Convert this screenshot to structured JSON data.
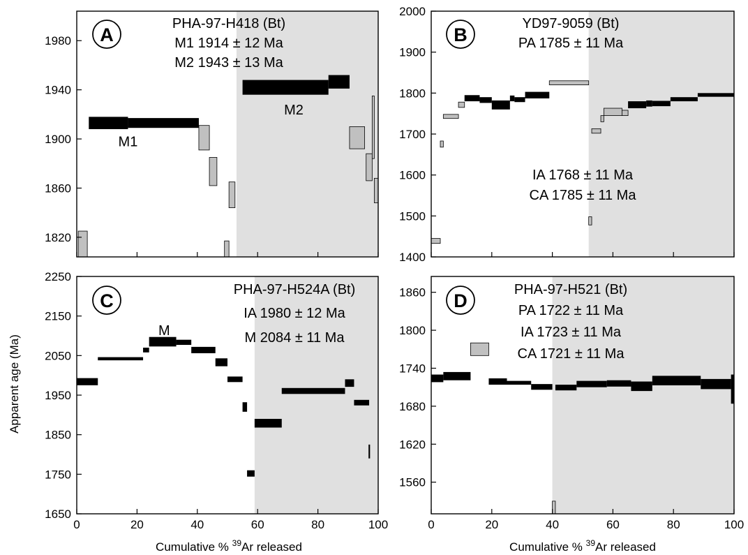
{
  "figure": {
    "ylabel": "Apparent age (Ma)",
    "xlabel_left": {
      "prefix": "Cumulative % ",
      "sup": "39",
      "suffix": "Ar released"
    },
    "xlabel_right": {
      "prefix": "Cumulative % ",
      "sup": "39",
      "suffix": "Ar released"
    }
  },
  "colors": {
    "shade": "#e0e0e0",
    "dark": "#000000",
    "gray": "#c0c0c0"
  },
  "chart_data": [
    {
      "id": "A",
      "type": "step-spectrum",
      "label": "A",
      "xlim": [
        0,
        100
      ],
      "ylim": [
        1804,
        2004
      ],
      "yticks": [
        1820,
        1860,
        1900,
        1940,
        1980
      ],
      "xticks": [],
      "shaded_from": 53,
      "annotations": [
        "PHA-97-H418 (Bt)",
        "M1 1914 ± 12 Ma",
        "M2 1943 ± 13 Ma"
      ],
      "plateau_labels": [
        {
          "text": "M1",
          "x": 17,
          "y": 1898
        },
        {
          "text": "M2",
          "x": 72,
          "y": 1924
        }
      ],
      "steps": [
        {
          "x0": 0.5,
          "x1": 3.5,
          "ymin": 1804,
          "ymax": 1825,
          "fill": "gray"
        },
        {
          "x0": 4,
          "x1": 17,
          "ymin": 1908,
          "ymax": 1918,
          "fill": "dark"
        },
        {
          "x0": 17,
          "x1": 40.5,
          "ymin": 1909,
          "ymax": 1917,
          "fill": "dark"
        },
        {
          "x0": 40.5,
          "x1": 44,
          "ymin": 1891,
          "ymax": 1911,
          "fill": "gray"
        },
        {
          "x0": 44,
          "x1": 46.5,
          "ymin": 1862,
          "ymax": 1885,
          "fill": "gray"
        },
        {
          "x0": 49,
          "x1": 50.5,
          "ymin": 1804,
          "ymax": 1817,
          "fill": "gray"
        },
        {
          "x0": 50.5,
          "x1": 52.5,
          "ymin": 1844,
          "ymax": 1865,
          "fill": "gray"
        },
        {
          "x0": 55,
          "x1": 83.5,
          "ymin": 1936,
          "ymax": 1948,
          "fill": "dark"
        },
        {
          "x0": 83.5,
          "x1": 90.5,
          "ymin": 1941,
          "ymax": 1952,
          "fill": "dark"
        },
        {
          "x0": 90.5,
          "x1": 95.5,
          "ymin": 1892,
          "ymax": 1910,
          "fill": "gray"
        },
        {
          "x0": 96,
          "x1": 98,
          "ymin": 1866,
          "ymax": 1888,
          "fill": "gray"
        },
        {
          "x0": 98,
          "x1": 98.7,
          "ymin": 1884,
          "ymax": 1935,
          "fill": "gray"
        },
        {
          "x0": 98.7,
          "x1": 100,
          "ymin": 1848,
          "ymax": 1868,
          "fill": "gray"
        }
      ]
    },
    {
      "id": "B",
      "type": "step-spectrum",
      "label": "B",
      "xlim": [
        0,
        100
      ],
      "ylim": [
        1400,
        2000
      ],
      "yticks": [
        1400,
        1500,
        1600,
        1700,
        1800,
        1900,
        2000
      ],
      "xticks": [],
      "shaded_from": 52,
      "annotations": [
        "YD97-9059 (Bt)",
        "PA 1785 ± 11 Ma",
        "IA 1768 ± 11 Ma",
        "CA 1785 ± 11 Ma"
      ],
      "plateau_labels": [],
      "steps": [
        {
          "x0": 0,
          "x1": 3,
          "ymin": 1433,
          "ymax": 1445,
          "fill": "gray"
        },
        {
          "x0": 3,
          "x1": 4,
          "ymin": 1668,
          "ymax": 1683,
          "fill": "gray"
        },
        {
          "x0": 4,
          "x1": 9,
          "ymin": 1738,
          "ymax": 1748,
          "fill": "gray"
        },
        {
          "x0": 9,
          "x1": 11,
          "ymin": 1765,
          "ymax": 1778,
          "fill": "gray"
        },
        {
          "x0": 11,
          "x1": 16,
          "ymin": 1780,
          "ymax": 1795,
          "fill": "dark"
        },
        {
          "x0": 16,
          "x1": 20,
          "ymin": 1776,
          "ymax": 1790,
          "fill": "dark"
        },
        {
          "x0": 20,
          "x1": 26,
          "ymin": 1760,
          "ymax": 1782,
          "fill": "dark"
        },
        {
          "x0": 26,
          "x1": 27.5,
          "ymin": 1780,
          "ymax": 1794,
          "fill": "dark"
        },
        {
          "x0": 27.5,
          "x1": 31,
          "ymin": 1778,
          "ymax": 1790,
          "fill": "dark"
        },
        {
          "x0": 31,
          "x1": 39,
          "ymin": 1787,
          "ymax": 1803,
          "fill": "dark"
        },
        {
          "x0": 39,
          "x1": 52,
          "ymin": 1820,
          "ymax": 1830,
          "fill": "gray"
        },
        {
          "x0": 52,
          "x1": 53,
          "ymin": 1478,
          "ymax": 1498,
          "fill": "gray"
        },
        {
          "x0": 53,
          "x1": 56,
          "ymin": 1702,
          "ymax": 1713,
          "fill": "gray"
        },
        {
          "x0": 56,
          "x1": 57,
          "ymin": 1730,
          "ymax": 1745,
          "fill": "gray"
        },
        {
          "x0": 57,
          "x1": 63,
          "ymin": 1745,
          "ymax": 1763,
          "fill": "gray"
        },
        {
          "x0": 63,
          "x1": 65,
          "ymin": 1745,
          "ymax": 1758,
          "fill": "gray"
        },
        {
          "x0": 65,
          "x1": 71,
          "ymin": 1763,
          "ymax": 1780,
          "fill": "dark"
        },
        {
          "x0": 71,
          "x1": 73,
          "ymin": 1767,
          "ymax": 1782,
          "fill": "dark"
        },
        {
          "x0": 73,
          "x1": 79,
          "ymin": 1768,
          "ymax": 1781,
          "fill": "dark"
        },
        {
          "x0": 79,
          "x1": 88,
          "ymin": 1780,
          "ymax": 1790,
          "fill": "dark"
        },
        {
          "x0": 88,
          "x1": 100,
          "ymin": 1791,
          "ymax": 1800,
          "fill": "dark"
        }
      ]
    },
    {
      "id": "C",
      "type": "step-spectrum",
      "label": "C",
      "xlim": [
        0,
        100
      ],
      "ylim": [
        1650,
        2250
      ],
      "yticks": [
        1650,
        1750,
        1850,
        1950,
        2050,
        2150,
        2250
      ],
      "xticks": [
        0,
        20,
        40,
        60,
        80,
        100
      ],
      "shaded_from": 59,
      "annotations": [
        "PHA-97-H524A (Bt)",
        "IA 1980 ± 12 Ma",
        "M 2084 ± 11 Ma"
      ],
      "plateau_labels": [
        {
          "text": "M",
          "x": 29,
          "y": 2114
        }
      ],
      "steps": [
        {
          "x0": 0,
          "x1": 7,
          "ymin": 1975,
          "ymax": 1993,
          "fill": "dark"
        },
        {
          "x0": 7,
          "x1": 22,
          "ymin": 2038,
          "ymax": 2046,
          "fill": "dark"
        },
        {
          "x0": 22,
          "x1": 24,
          "ymin": 2058,
          "ymax": 2070,
          "fill": "dark"
        },
        {
          "x0": 24,
          "x1": 33,
          "ymin": 2073,
          "ymax": 2097,
          "fill": "dark"
        },
        {
          "x0": 33,
          "x1": 38,
          "ymin": 2077,
          "ymax": 2090,
          "fill": "dark"
        },
        {
          "x0": 38,
          "x1": 46,
          "ymin": 2056,
          "ymax": 2072,
          "fill": "dark"
        },
        {
          "x0": 46,
          "x1": 50,
          "ymin": 2023,
          "ymax": 2043,
          "fill": "dark"
        },
        {
          "x0": 50,
          "x1": 55,
          "ymin": 1983,
          "ymax": 1997,
          "fill": "dark"
        },
        {
          "x0": 55,
          "x1": 56.5,
          "ymin": 1908,
          "ymax": 1932,
          "fill": "dark"
        },
        {
          "x0": 56.5,
          "x1": 59,
          "ymin": 1744,
          "ymax": 1760,
          "fill": "dark"
        },
        {
          "x0": 59,
          "x1": 68,
          "ymin": 1868,
          "ymax": 1890,
          "fill": "dark"
        },
        {
          "x0": 68,
          "x1": 89,
          "ymin": 1953,
          "ymax": 1968,
          "fill": "dark"
        },
        {
          "x0": 89,
          "x1": 92,
          "ymin": 1971,
          "ymax": 1990,
          "fill": "dark"
        },
        {
          "x0": 92,
          "x1": 97,
          "ymin": 1924,
          "ymax": 1938,
          "fill": "dark"
        },
        {
          "x0": 96.8,
          "x1": 97.3,
          "ymin": 1790,
          "ymax": 1825,
          "fill": "dark"
        }
      ]
    },
    {
      "id": "D",
      "type": "step-spectrum",
      "label": "D",
      "xlim": [
        0,
        100
      ],
      "ylim": [
        1510,
        1885
      ],
      "yticks": [
        1560,
        1620,
        1680,
        1740,
        1800,
        1860
      ],
      "xticks": [
        0,
        20,
        40,
        60,
        80,
        100
      ],
      "shaded_from": 40,
      "annotations": [
        "PHA-97-H521 (Bt)",
        "PA 1722 ± 11 Ma",
        "IA 1723 ± 11 Ma",
        "CA 1721 ± 11 Ma"
      ],
      "plateau_labels": [],
      "steps": [
        {
          "x0": 0,
          "x1": 4,
          "ymin": 1718,
          "ymax": 1730,
          "fill": "dark"
        },
        {
          "x0": 4,
          "x1": 13,
          "ymin": 1721,
          "ymax": 1734,
          "fill": "dark"
        },
        {
          "x0": 13,
          "x1": 19,
          "ymin": 1760,
          "ymax": 1780,
          "fill": "gray"
        },
        {
          "x0": 19,
          "x1": 25,
          "ymin": 1714,
          "ymax": 1724,
          "fill": "dark"
        },
        {
          "x0": 25,
          "x1": 33,
          "ymin": 1714,
          "ymax": 1720,
          "fill": "dark"
        },
        {
          "x0": 33,
          "x1": 40,
          "ymin": 1706,
          "ymax": 1715,
          "fill": "dark"
        },
        {
          "x0": 40,
          "x1": 41,
          "ymin": 1510,
          "ymax": 1530,
          "fill": "gray"
        },
        {
          "x0": 41,
          "x1": 48,
          "ymin": 1705,
          "ymax": 1714,
          "fill": "dark"
        },
        {
          "x0": 48,
          "x1": 58,
          "ymin": 1710,
          "ymax": 1720,
          "fill": "dark"
        },
        {
          "x0": 58,
          "x1": 66,
          "ymin": 1711,
          "ymax": 1721,
          "fill": "dark"
        },
        {
          "x0": 66,
          "x1": 73,
          "ymin": 1704,
          "ymax": 1719,
          "fill": "dark"
        },
        {
          "x0": 73,
          "x1": 89,
          "ymin": 1713,
          "ymax": 1728,
          "fill": "dark"
        },
        {
          "x0": 89,
          "x1": 99,
          "ymin": 1707,
          "ymax": 1723,
          "fill": "dark"
        },
        {
          "x0": 99,
          "x1": 100,
          "ymin": 1684,
          "ymax": 1730,
          "fill": "dark"
        }
      ]
    }
  ]
}
